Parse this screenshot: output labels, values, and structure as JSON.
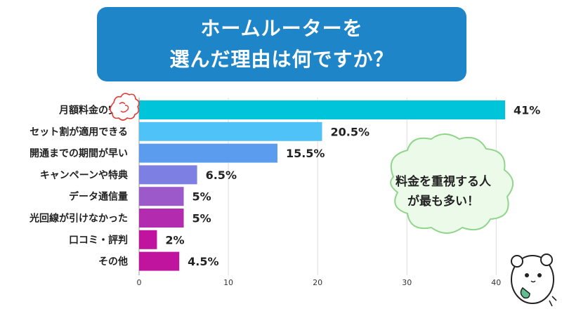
{
  "title": {
    "line1": "ホームルーターを",
    "line2": "選んだ理由は何ですか？"
  },
  "chart_data": {
    "type": "bar",
    "orientation": "horizontal",
    "categories": [
      "月額料金の安さ",
      "セット割が適用できる",
      "開通までの期間が早い",
      "キャンペーンや特典",
      "データ通信量",
      "光回線が引けなかった",
      "口コミ・評判",
      "その他"
    ],
    "values": [
      41,
      20.5,
      15.5,
      6.5,
      5,
      5,
      2,
      4.5
    ],
    "value_labels": [
      "41%",
      "20.5%",
      "15.5%",
      "6.5%",
      "5%",
      "5%",
      "2%",
      "4.5%"
    ],
    "bar_colors": [
      "#00c4d9",
      "#4fc3f7",
      "#5c9cef",
      "#7d7fe3",
      "#9b59c9",
      "#b32cb0",
      "#c0139e",
      "#c0139e"
    ],
    "xlim": [
      0,
      43
    ],
    "xticks": [
      0,
      10,
      20,
      30,
      40
    ],
    "grid": true,
    "xlabel": "",
    "ylabel": ""
  },
  "callout": {
    "line1": "料金を重視する人",
    "line2": "が最も多い！",
    "fill": "#ecfbe9",
    "stroke": "#8fd58a"
  }
}
